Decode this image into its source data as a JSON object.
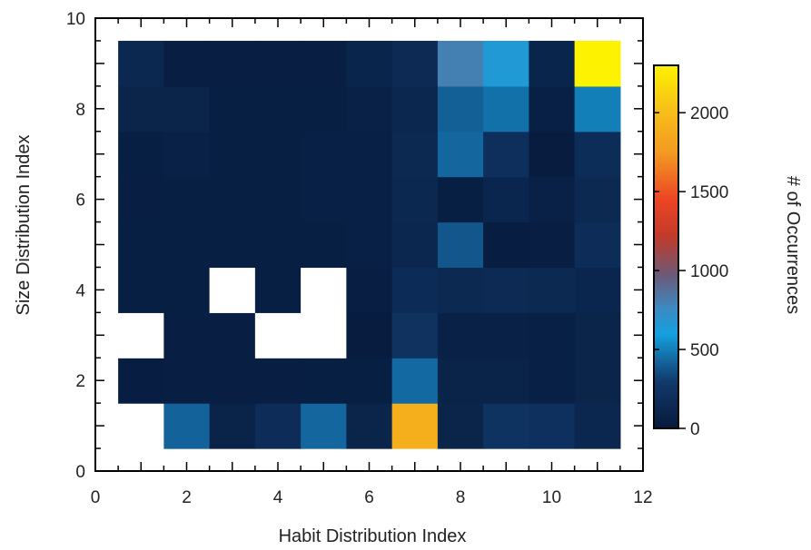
{
  "chart_data": {
    "type": "heatmap",
    "title": "",
    "xlabel": "Habit Distribution Index",
    "ylabel": "Size Distribution Index",
    "xlim": [
      0,
      12
    ],
    "ylim": [
      0,
      10
    ],
    "x_ticks": [
      "0",
      "2",
      "4",
      "6",
      "8",
      "10",
      "12"
    ],
    "y_ticks": [
      "0",
      "2",
      "4",
      "6",
      "8",
      "10"
    ],
    "x_centers": [
      1,
      2,
      3,
      4,
      5,
      6,
      7,
      8,
      9,
      10,
      11
    ],
    "y_centers": [
      1,
      2,
      3,
      4,
      5,
      6,
      7,
      8,
      9
    ],
    "values": [
      [
        null,
        420,
        80,
        170,
        430,
        90,
        1900,
        90,
        230,
        210,
        120
      ],
      [
        30,
        40,
        40,
        40,
        50,
        50,
        440,
        80,
        80,
        60,
        90
      ],
      [
        null,
        40,
        40,
        null,
        null,
        20,
        220,
        70,
        70,
        60,
        90
      ],
      [
        50,
        50,
        null,
        50,
        null,
        40,
        160,
        140,
        150,
        140,
        110
      ],
      [
        50,
        50,
        50,
        50,
        50,
        60,
        120,
        380,
        30,
        40,
        170
      ],
      [
        40,
        50,
        50,
        50,
        60,
        60,
        130,
        50,
        110,
        70,
        140
      ],
      [
        50,
        70,
        50,
        50,
        60,
        60,
        140,
        430,
        200,
        20,
        180
      ],
      [
        90,
        90,
        50,
        50,
        50,
        70,
        120,
        410,
        460,
        60,
        500
      ],
      [
        130,
        40,
        40,
        40,
        40,
        100,
        150,
        800,
        650,
        100,
        2300
      ]
    ],
    "colorbar": {
      "label": "# of Occurrences",
      "min": 0,
      "max": 2300,
      "ticks": [
        0,
        500,
        1000,
        1500,
        2000
      ],
      "tick_labels": [
        "0",
        "500",
        "1000",
        "1500",
        "2000"
      ],
      "colormap": "parula-like"
    },
    "missing_color": "#ffffff"
  }
}
